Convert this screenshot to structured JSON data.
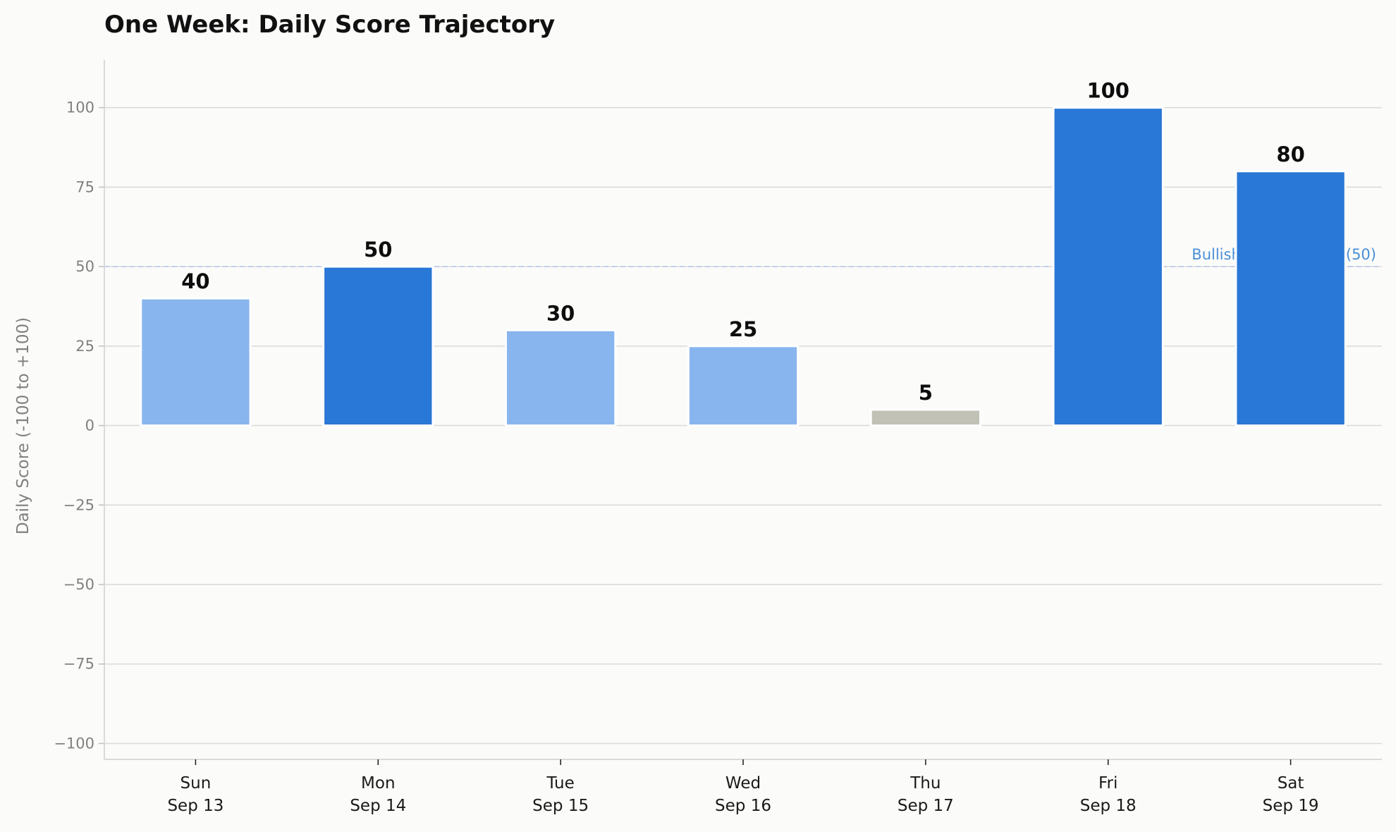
{
  "chart_data": {
    "type": "bar",
    "title": "One Week: Daily Score Trajectory",
    "xlabel": "",
    "ylabel": "Daily Score (-100 to +100)",
    "ylim": [
      -105,
      115
    ],
    "yticks": [
      100,
      75,
      50,
      25,
      0,
      -25,
      -50,
      -75,
      -100
    ],
    "ytick_labels": [
      "100",
      "75",
      "50",
      "25",
      "0",
      "−25",
      "−50",
      "−75",
      "−100"
    ],
    "grid": "horizontal",
    "categories": [
      {
        "day": "Sun",
        "date": "Sep 13"
      },
      {
        "day": "Mon",
        "date": "Sep 14"
      },
      {
        "day": "Tue",
        "date": "Sep 15"
      },
      {
        "day": "Wed",
        "date": "Sep 16"
      },
      {
        "day": "Thu",
        "date": "Sep 17"
      },
      {
        "day": "Fri",
        "date": "Sep 18"
      },
      {
        "day": "Sat",
        "date": "Sep 19"
      }
    ],
    "values": [
      40,
      50,
      30,
      25,
      5,
      100,
      80
    ],
    "bar_colors": [
      "#88b5ee",
      "#2977d6",
      "#88b5ee",
      "#88b5ee",
      "#c1c1b5",
      "#2977d6",
      "#2977d6"
    ],
    "reference_line": {
      "value": 50,
      "label": "Bullish Expectations (50)",
      "color": "#4a8fd6"
    },
    "colors": {
      "background": "#fbfbf9",
      "grid": "#d9d9d9",
      "axis": "#d0d0d0"
    }
  }
}
